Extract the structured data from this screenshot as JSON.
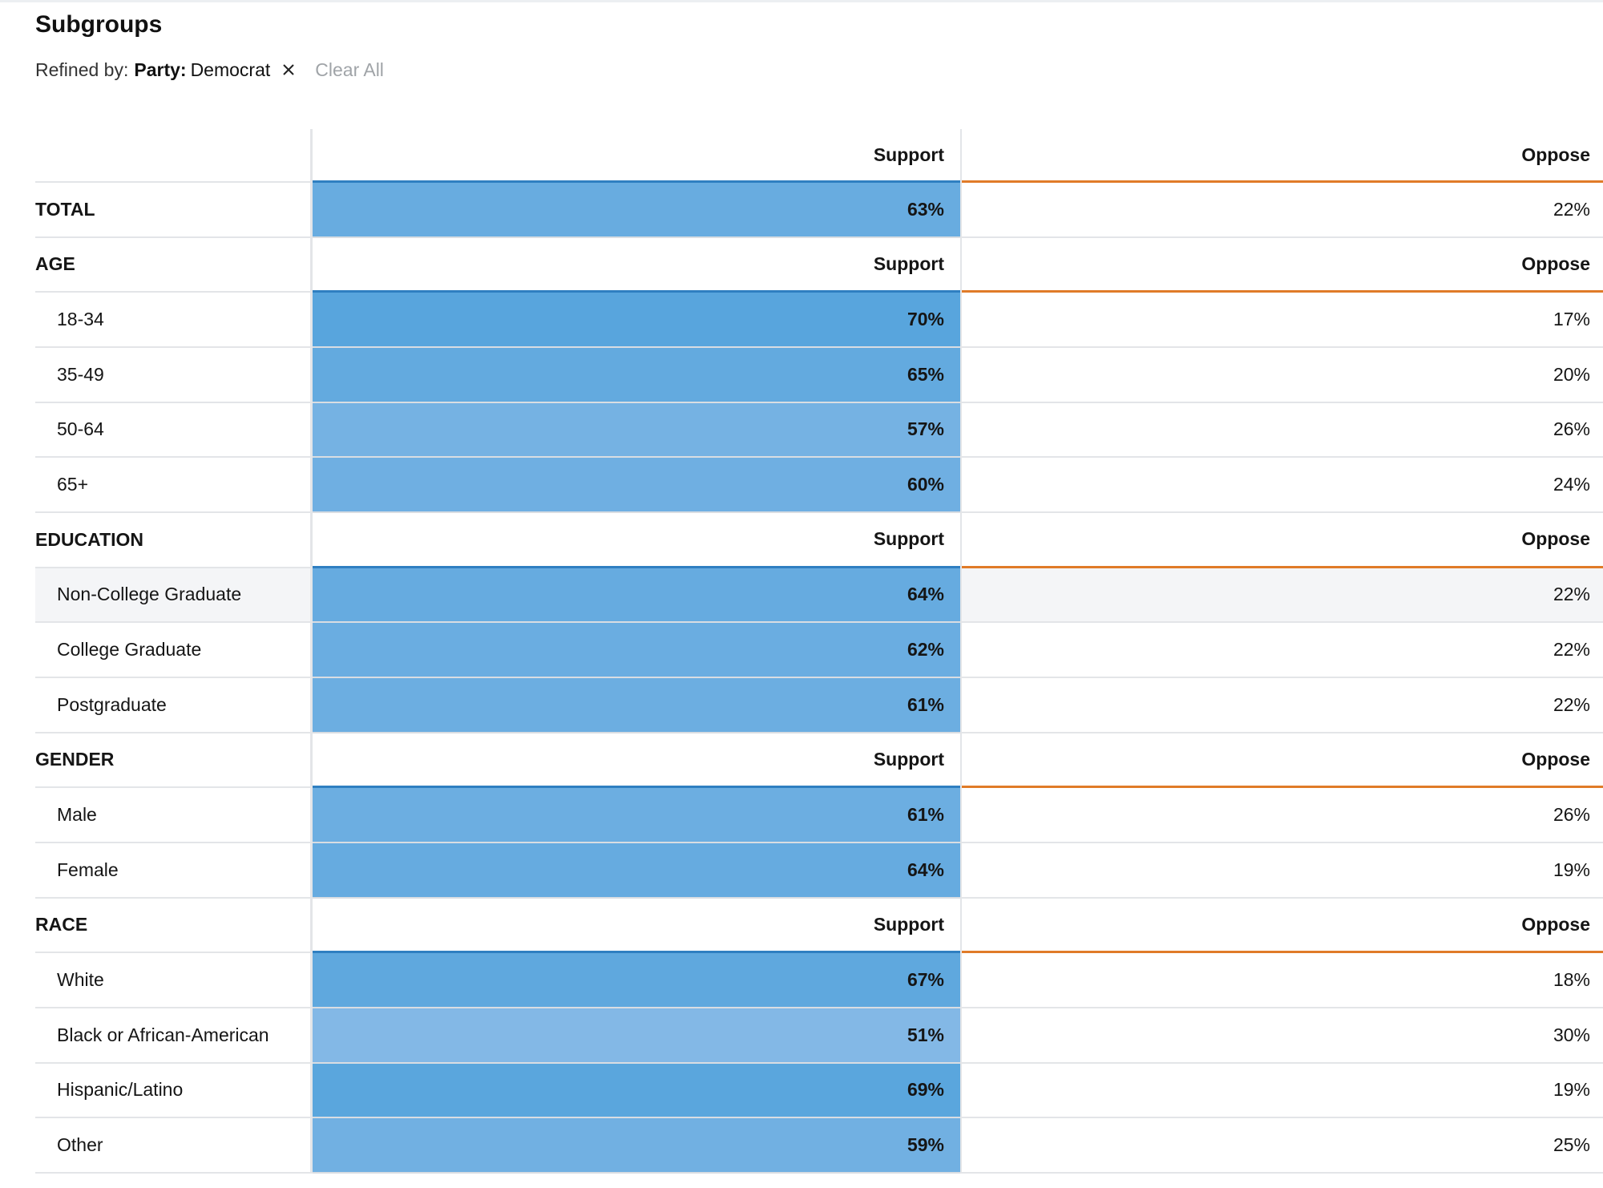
{
  "title": "Subgroups",
  "refine": {
    "label": "Refined by:",
    "filter_key": "Party:",
    "filter_value": "Democrat",
    "clear_all": "Clear All"
  },
  "columns": {
    "support": "Support",
    "oppose": "Oppose"
  },
  "colors": {
    "support_head_line": "#2f7fc1",
    "oppose_head_line": "#e07b28",
    "highlight_row": "#f4f5f7"
  },
  "rows": [
    {
      "type": "header"
    },
    {
      "type": "data",
      "label": "TOTAL",
      "bold": true,
      "support": "63%",
      "oppose": "22%",
      "support_value": 63
    },
    {
      "type": "group",
      "label": "AGE"
    },
    {
      "type": "data",
      "label": "18-34",
      "support": "70%",
      "oppose": "17%",
      "support_value": 70
    },
    {
      "type": "data",
      "label": "35-49",
      "support": "65%",
      "oppose": "20%",
      "support_value": 65
    },
    {
      "type": "data",
      "label": "50-64",
      "support": "57%",
      "oppose": "26%",
      "support_value": 57
    },
    {
      "type": "data",
      "label": "65+",
      "support": "60%",
      "oppose": "24%",
      "support_value": 60
    },
    {
      "type": "group",
      "label": "EDUCATION"
    },
    {
      "type": "data",
      "label": "Non-College Graduate",
      "support": "64%",
      "oppose": "22%",
      "support_value": 64,
      "highlight": true
    },
    {
      "type": "data",
      "label": "College Graduate",
      "support": "62%",
      "oppose": "22%",
      "support_value": 62
    },
    {
      "type": "data",
      "label": "Postgraduate",
      "support": "61%",
      "oppose": "22%",
      "support_value": 61
    },
    {
      "type": "group",
      "label": "GENDER"
    },
    {
      "type": "data",
      "label": "Male",
      "support": "61%",
      "oppose": "26%",
      "support_value": 61
    },
    {
      "type": "data",
      "label": "Female",
      "support": "64%",
      "oppose": "19%",
      "support_value": 64
    },
    {
      "type": "group",
      "label": "RACE"
    },
    {
      "type": "data",
      "label": "White",
      "support": "67%",
      "oppose": "18%",
      "support_value": 67
    },
    {
      "type": "data",
      "label": "Black or African-American",
      "support": "51%",
      "oppose": "30%",
      "support_value": 51
    },
    {
      "type": "data",
      "label": "Hispanic/Latino",
      "support": "69%",
      "oppose": "19%",
      "support_value": 69
    },
    {
      "type": "data",
      "label": "Other",
      "support": "59%",
      "oppose": "25%",
      "support_value": 59
    }
  ]
}
